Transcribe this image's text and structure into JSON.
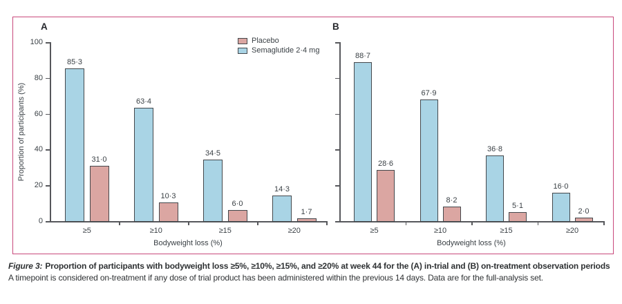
{
  "legend": {
    "items": [
      {
        "label": "Placebo",
        "color": "#DBA6A2"
      },
      {
        "label": "Semaglutide 2·4 mg",
        "color": "#A9D4E5"
      }
    ]
  },
  "colors": {
    "frame_border": "#C8487B",
    "bar_stroke": "#43474B",
    "axis": "#56575B",
    "text": "#3A4045",
    "placebo_fill": "#DBA6A2",
    "semaglutide_fill": "#A9D4E5"
  },
  "chart_data": [
    {
      "type": "bar",
      "panel": "A",
      "categories": [
        "≥5",
        "≥10",
        "≥15",
        "≥20"
      ],
      "series": [
        {
          "name": "Semaglutide 2·4 mg",
          "color": "#A9D4E5",
          "values": [
            85.3,
            63.4,
            34.5,
            14.3
          ],
          "value_labels": [
            "85·3",
            "63·4",
            "34·5",
            "14·3"
          ]
        },
        {
          "name": "Placebo",
          "color": "#DBA6A2",
          "values": [
            31.0,
            10.3,
            6.0,
            1.7
          ],
          "value_labels": [
            "31·0",
            "10·3",
            "6·0",
            "1·7"
          ]
        }
      ],
      "xlabel": "Bodyweight loss (%)",
      "ylabel": "Proportion of participants (%)",
      "ylim": [
        0,
        100
      ],
      "yticks": [
        0,
        20,
        40,
        60,
        80,
        100
      ],
      "ytick_labels_shown": true,
      "grid": false,
      "legend_position": "top right of panel A"
    },
    {
      "type": "bar",
      "panel": "B",
      "categories": [
        "≥5",
        "≥10",
        "≥15",
        "≥20"
      ],
      "series": [
        {
          "name": "Semaglutide 2·4 mg",
          "color": "#A9D4E5",
          "values": [
            88.7,
            67.9,
            36.8,
            16.0
          ],
          "value_labels": [
            "88·7",
            "67·9",
            "36·8",
            "16·0"
          ]
        },
        {
          "name": "Placebo",
          "color": "#DBA6A2",
          "values": [
            28.6,
            8.2,
            5.1,
            2.0
          ],
          "value_labels": [
            "28·6",
            "8·2",
            "5·1",
            "2·0"
          ]
        }
      ],
      "xlabel": "Bodyweight loss (%)",
      "ylabel": "",
      "ylim": [
        0,
        100
      ],
      "yticks": [
        0,
        20,
        40,
        60,
        80,
        100
      ],
      "ytick_labels_shown": false,
      "grid": false
    }
  ],
  "caption": {
    "prefix": "Figure 3:",
    "title_bold": "Proportion of participants with bodyweight loss ≥5%, ≥10%, ≥15%, and ≥20% at week 44 for the (A) in-trial and (B) on-treatment observation periods",
    "note": "A timepoint is considered on-treatment if any dose of trial product has been administered within the previous 14 days. Data are for the full-analysis set."
  }
}
